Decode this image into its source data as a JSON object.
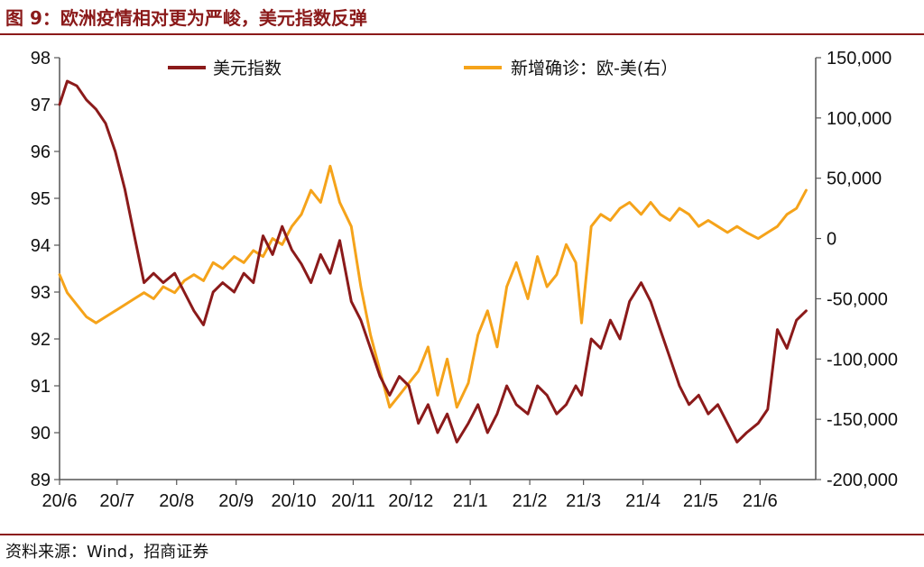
{
  "title": "图 9：欧洲疫情相对更为严峻，美元指数反弹",
  "source": "资料来源：Wind，招商证券",
  "colors": {
    "title": "#8b1a1a",
    "usd": "#8b1a1a",
    "cases": "#f5a31a"
  },
  "chart_data": {
    "type": "line",
    "title": "图 9：欧洲疫情相对更为严峻，美元指数反弹",
    "x_ticks": [
      "20/6",
      "20/7",
      "20/8",
      "20/9",
      "20/10",
      "20/11",
      "20/12",
      "21/1",
      "21/2",
      "21/3",
      "21/4",
      "21/5",
      "21/6"
    ],
    "y_left": {
      "range": [
        89,
        98
      ],
      "ticks": [
        "89",
        "90",
        "91",
        "92",
        "93",
        "94",
        "95",
        "96",
        "97",
        "98"
      ]
    },
    "y_right": {
      "range": [
        -200000,
        150000
      ],
      "ticks": [
        "150,000",
        "100,000",
        "50,000",
        "0",
        "-50,000",
        "-100,000",
        "-150,000",
        "-200,000"
      ]
    },
    "legend": [
      "美元指数",
      "新增确诊：欧-美(右）"
    ],
    "legend_placement": "top",
    "grid": false,
    "series": [
      {
        "name": "美元指数",
        "axis": "left",
        "x": [
          "2020-06-01",
          "2020-06-05",
          "2020-06-10",
          "2020-06-15",
          "2020-06-20",
          "2020-06-25",
          "2020-06-30",
          "2020-07-05",
          "2020-07-10",
          "2020-07-15",
          "2020-07-20",
          "2020-07-25",
          "2020-07-31",
          "2020-08-05",
          "2020-08-10",
          "2020-08-15",
          "2020-08-20",
          "2020-08-25",
          "2020-08-31",
          "2020-09-05",
          "2020-09-10",
          "2020-09-15",
          "2020-09-20",
          "2020-09-25",
          "2020-09-30",
          "2020-10-05",
          "2020-10-10",
          "2020-10-15",
          "2020-10-20",
          "2020-10-25",
          "2020-10-31",
          "2020-11-05",
          "2020-11-10",
          "2020-11-15",
          "2020-11-20",
          "2020-11-25",
          "2020-11-30",
          "2020-12-05",
          "2020-12-10",
          "2020-12-15",
          "2020-12-20",
          "2020-12-25",
          "2020-12-31",
          "2021-01-05",
          "2021-01-10",
          "2021-01-15",
          "2021-01-20",
          "2021-01-25",
          "2021-01-31",
          "2021-02-05",
          "2021-02-10",
          "2021-02-15",
          "2021-02-20",
          "2021-02-25",
          "2021-02-28",
          "2021-03-05",
          "2021-03-10",
          "2021-03-15",
          "2021-03-20",
          "2021-03-25",
          "2021-03-31",
          "2021-04-05",
          "2021-04-10",
          "2021-04-15",
          "2021-04-20",
          "2021-04-25",
          "2021-04-30",
          "2021-05-05",
          "2021-05-10",
          "2021-05-15",
          "2021-05-20",
          "2021-05-25",
          "2021-05-31",
          "2021-06-05",
          "2021-06-10",
          "2021-06-15",
          "2021-06-20",
          "2021-06-25"
        ],
        "values": [
          97.0,
          97.5,
          97.4,
          97.1,
          96.9,
          96.6,
          96.0,
          95.2,
          94.2,
          93.2,
          93.4,
          93.2,
          93.4,
          93.0,
          92.6,
          92.3,
          93.0,
          93.2,
          93.0,
          93.4,
          93.2,
          94.2,
          93.8,
          94.4,
          93.9,
          93.6,
          93.2,
          93.8,
          93.4,
          94.1,
          92.8,
          92.4,
          91.8,
          91.2,
          90.8,
          91.2,
          91.0,
          90.2,
          90.6,
          90.0,
          90.4,
          89.8,
          90.2,
          90.6,
          90.0,
          90.4,
          91.0,
          90.6,
          90.4,
          91.0,
          90.8,
          90.4,
          90.6,
          91.0,
          90.8,
          92.0,
          91.8,
          92.4,
          92.0,
          92.8,
          93.2,
          92.8,
          92.2,
          91.6,
          91.0,
          90.6,
          90.8,
          90.4,
          90.6,
          90.2,
          89.8,
          90.0,
          90.2,
          90.5,
          92.2,
          91.8,
          92.4,
          92.6
        ]
      },
      {
        "name": "新增确诊：欧-美(右）",
        "axis": "right",
        "x": [
          "2020-06-01",
          "2020-06-05",
          "2020-06-10",
          "2020-06-15",
          "2020-06-20",
          "2020-06-25",
          "2020-06-30",
          "2020-07-05",
          "2020-07-10",
          "2020-07-15",
          "2020-07-20",
          "2020-07-25",
          "2020-07-31",
          "2020-08-05",
          "2020-08-10",
          "2020-08-15",
          "2020-08-20",
          "2020-08-25",
          "2020-08-31",
          "2020-09-05",
          "2020-09-10",
          "2020-09-15",
          "2020-09-20",
          "2020-09-25",
          "2020-09-30",
          "2020-10-05",
          "2020-10-10",
          "2020-10-15",
          "2020-10-20",
          "2020-10-25",
          "2020-10-31",
          "2020-11-05",
          "2020-11-10",
          "2020-11-15",
          "2020-11-20",
          "2020-11-25",
          "2020-11-30",
          "2020-12-05",
          "2020-12-10",
          "2020-12-15",
          "2020-12-20",
          "2020-12-25",
          "2020-12-31",
          "2021-01-05",
          "2021-01-10",
          "2021-01-15",
          "2021-01-20",
          "2021-01-25",
          "2021-01-31",
          "2021-02-05",
          "2021-02-10",
          "2021-02-15",
          "2021-02-20",
          "2021-02-25",
          "2021-02-28",
          "2021-03-05",
          "2021-03-10",
          "2021-03-15",
          "2021-03-20",
          "2021-03-25",
          "2021-03-31",
          "2021-04-05",
          "2021-04-10",
          "2021-04-15",
          "2021-04-20",
          "2021-04-25",
          "2021-04-30",
          "2021-05-05",
          "2021-05-10",
          "2021-05-15",
          "2021-05-20",
          "2021-05-25",
          "2021-05-31",
          "2021-06-05",
          "2021-06-10",
          "2021-06-15",
          "2021-06-20",
          "2021-06-25"
        ],
        "values": [
          -30000,
          -45000,
          -55000,
          -65000,
          -70000,
          -65000,
          -60000,
          -55000,
          -50000,
          -45000,
          -50000,
          -40000,
          -45000,
          -35000,
          -30000,
          -35000,
          -20000,
          -25000,
          -15000,
          -20000,
          -10000,
          -15000,
          0,
          -5000,
          10000,
          20000,
          40000,
          30000,
          60000,
          30000,
          10000,
          -40000,
          -80000,
          -110000,
          -140000,
          -130000,
          -120000,
          -110000,
          -90000,
          -130000,
          -100000,
          -140000,
          -120000,
          -80000,
          -60000,
          -90000,
          -40000,
          -20000,
          -50000,
          -15000,
          -40000,
          -30000,
          -5000,
          -20000,
          -70000,
          10000,
          20000,
          15000,
          25000,
          30000,
          20000,
          30000,
          20000,
          15000,
          25000,
          20000,
          10000,
          15000,
          10000,
          5000,
          10000,
          5000,
          0,
          5000,
          10000,
          20000,
          25000,
          40000
        ]
      }
    ]
  }
}
